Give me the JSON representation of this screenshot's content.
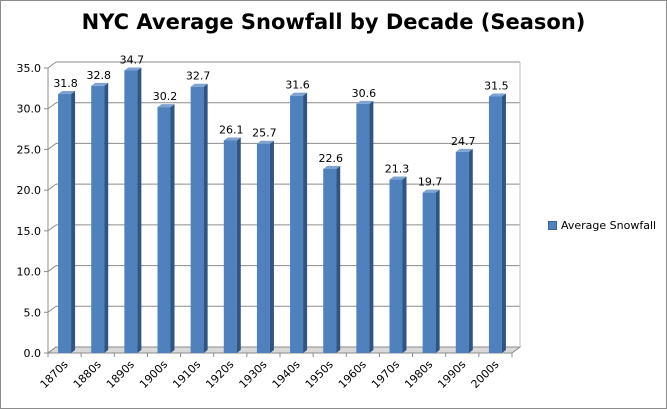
{
  "chart_data": {
    "type": "bar",
    "title": "NYC Average Snowfall by Decade (Season)",
    "categories": [
      "1870s",
      "1880s",
      "1890s",
      "1900s",
      "1910s",
      "1920s",
      "1930s",
      "1940s",
      "1950s",
      "1960s",
      "1970s",
      "1980s",
      "1990s",
      "2000s"
    ],
    "series": [
      {
        "name": "Average Snowfall",
        "values": [
          31.8,
          32.8,
          34.7,
          30.2,
          32.7,
          26.1,
          25.7,
          31.6,
          22.6,
          30.6,
          21.3,
          19.7,
          24.7,
          31.5
        ],
        "labels": [
          "31.8",
          "32.8",
          "34.7",
          "30.2",
          "32.7",
          "26.1",
          "25.7",
          "31.6",
          "22.6",
          "30.6",
          "21.3",
          "19.7",
          "24.7",
          "31.5"
        ],
        "color": "#4f81bd"
      }
    ],
    "ylim": [
      0,
      35
    ],
    "yticks": [
      "0.0",
      "5.0",
      "10.0",
      "15.0",
      "20.0",
      "25.0",
      "30.0",
      "35.0"
    ],
    "ytick_values": [
      0,
      5,
      10,
      15,
      20,
      25,
      30,
      35
    ],
    "grid": true,
    "legend": "right",
    "xlabel": "",
    "ylabel": ""
  }
}
